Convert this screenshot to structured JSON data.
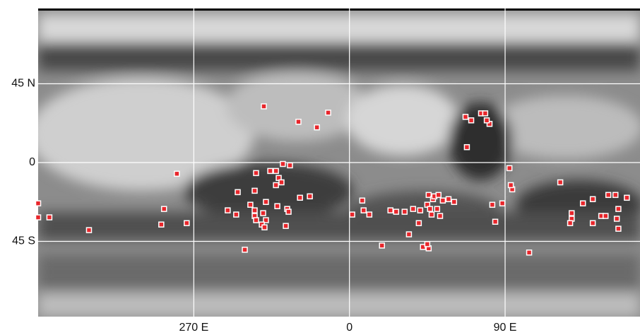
{
  "chart_data": {
    "type": "scatter",
    "x": [
      -49.5,
      -12.3,
      -29.5,
      -18.8,
      67.1,
      70.4,
      76.1,
      78.5,
      81.0,
      79.4,
      67.9,
      -99.8,
      -54.0,
      -45.8,
      -42.5,
      -38.5,
      -34.4,
      -40.9,
      -39.3,
      -42.5,
      -64.6,
      -54.8,
      -28.6,
      -22.9,
      -107.2,
      -70.4,
      -57.3,
      -54.8,
      -54.8,
      -48.3,
      -49.9,
      -41.7,
      -36.0,
      -35.2,
      -65.5,
      -54.0,
      -48.3,
      -50.7,
      -49.1,
      -36.8,
      -108.8,
      -94.1,
      -150.6,
      -180.0,
      -180.0,
      -173.5,
      1.6,
      7.4,
      8.2,
      11.5,
      23.7,
      27.0,
      31.9,
      36.8,
      40.9,
      45.8,
      48.3,
      45.0,
      49.1,
      51.5,
      54.0,
      57.3,
      46.6,
      50.7,
      40.1,
      47.5,
      52.4,
      60.5,
      82.6,
      88.4,
      34.4,
      18.8,
      42.5,
      45.8,
      45.0,
      -60.5,
      103.9,
      92.5,
      94.1,
      93.3,
      84.3,
      121.9,
      128.5,
      128.5,
      127.6,
      140.7,
      140.7,
      145.6,
      148.1,
      149.7,
      153.8,
      155.5,
      154.6,
      160.4,
      155.5,
      135.0
    ],
    "values": [
      32.1,
      28.5,
      23.3,
      20.1,
      26.1,
      24.1,
      28.1,
      28.1,
      22.1,
      24.1,
      8.8,
      -6.4,
      -6.0,
      -4.8,
      -4.8,
      -0.8,
      -1.6,
      -8.8,
      -11.3,
      -12.9,
      -16.9,
      -16.1,
      -20.1,
      -19.3,
      -26.5,
      -27.3,
      -24.1,
      -27.3,
      -30.5,
      -22.5,
      -28.9,
      -24.9,
      -26.5,
      -28.1,
      -29.7,
      -32.9,
      -32.9,
      -35.4,
      -37.0,
      -36.2,
      -35.4,
      -34.6,
      -38.6,
      -23.3,
      -31.3,
      -31.3,
      -29.7,
      -21.7,
      -27.3,
      -29.7,
      -27.3,
      -28.1,
      -28.1,
      -26.5,
      -27.3,
      -18.5,
      -20.9,
      -24.1,
      -19.3,
      -18.5,
      -21.7,
      -20.9,
      -26.5,
      -26.5,
      -34.6,
      -29.7,
      -30.5,
      -22.5,
      -24.1,
      -23.3,
      -41.0,
      -47.4,
      -48.2,
      -49.0,
      -46.6,
      -49.8,
      -51.4,
      -3.2,
      -15.3,
      -12.9,
      -33.8,
      -11.3,
      -28.9,
      -32.1,
      -34.6,
      -34.6,
      -20.9,
      -30.5,
      -30.5,
      -18.5,
      -18.5,
      -26.5,
      -32.1,
      -20.1,
      -37.8,
      -23.3
    ],
    "color": "#e8262b",
    "xlim": [
      -180,
      168
    ],
    "xticks": [
      {
        "value": -90,
        "label": "270 E"
      },
      0,
      {
        "value": 90,
        "label": "90 E"
      }
    ],
    "ylim": [
      -88,
      88
    ],
    "yticks": [
      {
        "value": 45,
        "label": "45 N"
      },
      0,
      {
        "value": -45,
        "label": "45 S"
      }
    ],
    "grid": true
  }
}
